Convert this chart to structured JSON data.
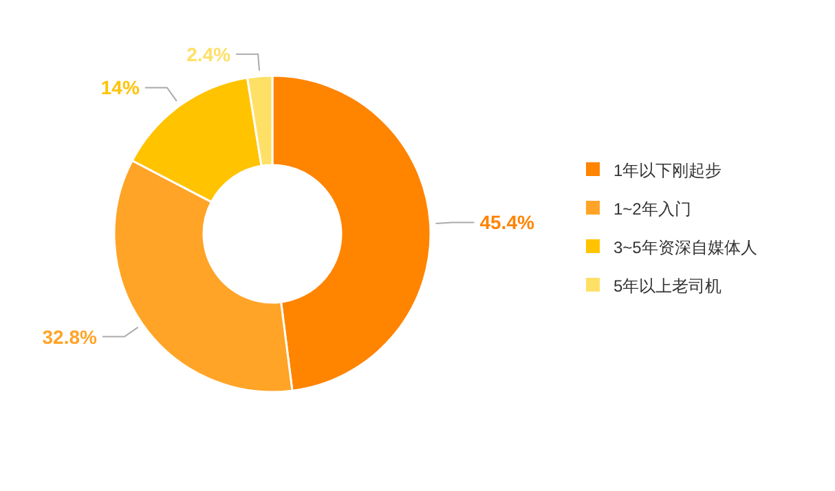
{
  "chart_data": {
    "type": "donut",
    "categories": [
      "1年以下刚起步",
      "1~2年入门",
      "3~5年资深自媒体人",
      "5年以上老司机"
    ],
    "values": [
      45.4,
      32.8,
      14,
      2.4
    ],
    "colors": [
      "#ff8400",
      "#ffa426",
      "#ffc300",
      "#ffe066"
    ],
    "value_labels": [
      "45.4%",
      "32.8%",
      "14%",
      "2.4%"
    ],
    "legend": "right"
  }
}
